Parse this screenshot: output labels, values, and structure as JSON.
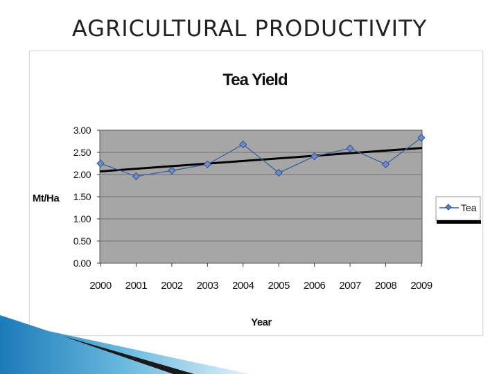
{
  "slide": {
    "title": "AGRICULTURAL PRODUCTIVITY"
  },
  "chart_data": {
    "type": "line",
    "title": "Tea Yield",
    "xlabel": "Year",
    "ylabel": "Mt/Ha",
    "x": [
      "2000",
      "2001",
      "2002",
      "2003",
      "2004",
      "2005",
      "2006",
      "2007",
      "2008",
      "2009"
    ],
    "series": [
      {
        "name": "Tea",
        "values": [
          2.25,
          1.96,
          2.09,
          2.23,
          2.68,
          2.04,
          2.41,
          2.59,
          2.23,
          2.83
        ]
      }
    ],
    "trendline": {
      "start": 2.07,
      "end": 2.6
    },
    "ylim": [
      0,
      3
    ],
    "yticks": [
      "0.00",
      "0.50",
      "1.00",
      "1.50",
      "2.00",
      "2.50",
      "3.00"
    ],
    "ytick_values": [
      0,
      0.5,
      1,
      1.5,
      2,
      2.5,
      3
    ],
    "grid": true,
    "legend": "right",
    "colors": {
      "series": "#3b5fa0",
      "trend": "#000000",
      "plot_bg": "#a6a6a6",
      "grid": "#6f6f6f"
    }
  }
}
